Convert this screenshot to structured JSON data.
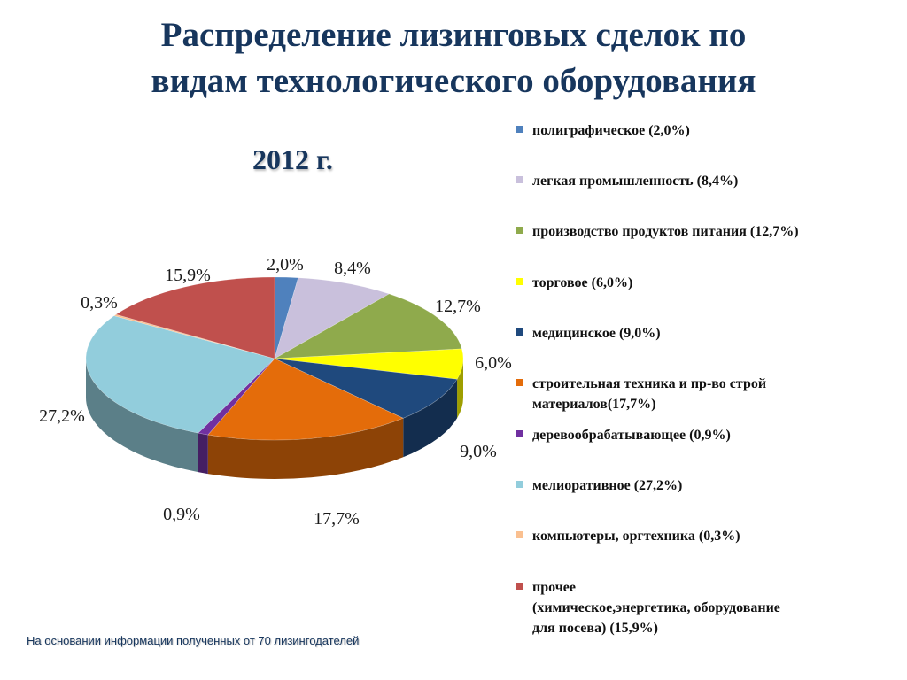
{
  "title_line1": "Распределение лизинговых сделок по",
  "title_line2": "видам технологического оборудования",
  "year": "2012 г.",
  "footnote": "На основании информации полученных от 70 лизингодателей",
  "chart_data": {
    "type": "pie",
    "style": "3d",
    "slices": [
      {
        "key": "polygraph",
        "value": 2.0,
        "data_label": "2,0%",
        "legend": "полиграфическое (2,0%)",
        "color": "#4f81bd"
      },
      {
        "key": "light",
        "value": 8.4,
        "data_label": "8,4%",
        "legend": "легкая промышленность  (8,4%)",
        "color": "#c9c0dc"
      },
      {
        "key": "food",
        "value": 12.7,
        "data_label": "12,7%",
        "legend": "производство продуктов питания (12,7%)",
        "color": "#8faa4c"
      },
      {
        "key": "trade",
        "value": 6.0,
        "data_label": "6,0%",
        "legend": "торговое (6,0%)",
        "color": "#ffff00"
      },
      {
        "key": "medical",
        "value": 9.0,
        "data_label": "9,0%",
        "legend": "медицинское (9,0%)",
        "color": "#1f497d"
      },
      {
        "key": "construction",
        "value": 17.7,
        "data_label": "17,7%",
        "legend": "строительная техника и пр-во строй\nматериалов(17,7%)",
        "color": "#e46c0a"
      },
      {
        "key": "wood",
        "value": 0.9,
        "data_label": "0,9%",
        "legend": "деревообрабатывающее (0,9%)",
        "color": "#7030a0"
      },
      {
        "key": "melioration",
        "value": 27.2,
        "data_label": "27,2%",
        "legend": "мелиоративное (27,2%)",
        "color": "#92cddc"
      },
      {
        "key": "computers",
        "value": 0.3,
        "data_label": "0,3%",
        "legend": "компьютеры, оргтехника (0,3%)",
        "color": "#fac090"
      },
      {
        "key": "other",
        "value": 15.9,
        "data_label": "15,9%",
        "legend": "прочее\n(химическое,энергетика, оборудование\nдля посева) (15,9%)",
        "color": "#c0504d"
      }
    ],
    "legend_position": "right"
  }
}
